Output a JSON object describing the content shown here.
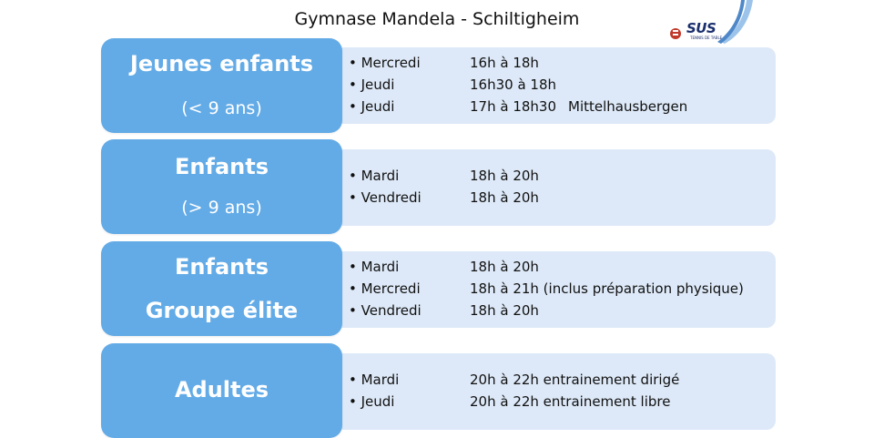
{
  "header": {
    "title": "Gymnase Mandela - Schiltigheim"
  },
  "logo": {
    "text": "SUS",
    "subtext": "TENNIS DE TABLE"
  },
  "groups": [
    {
      "title": "Jeunes enfants",
      "subtitle": "(< 9 ans)",
      "sessions": [
        {
          "day": "• Mercredi",
          "time": "16h à 18h",
          "place": ""
        },
        {
          "day": "• Jeudi",
          "time": "16h30 à 18h",
          "place": ""
        },
        {
          "day": "• Jeudi",
          "time": "17h à 18h30",
          "place": "Mittelhausbergen"
        }
      ]
    },
    {
      "title": "Enfants",
      "subtitle": "(> 9 ans)",
      "sessions": [
        {
          "day": "• Mardi",
          "time": "18h à 20h"
        },
        {
          "day": "• Vendredi",
          "time": "18h à 20h"
        }
      ]
    },
    {
      "title": "Enfants",
      "subtitle": "Groupe élite",
      "sessions": [
        {
          "day": "• Mardi",
          "time": "18h à 20h"
        },
        {
          "day": "• Mercredi",
          "time": "18h à 21h (inclus préparation physique)"
        },
        {
          "day": "• Vendredi",
          "time": "18h à 20h"
        }
      ]
    },
    {
      "title": "Adultes",
      "subtitle": "",
      "sessions": [
        {
          "day": "• Mardi",
          "time": "20h à 22h entrainement dirigé"
        },
        {
          "day": "• Jeudi",
          "time": "20h à 22h entrainement libre"
        }
      ]
    }
  ]
}
